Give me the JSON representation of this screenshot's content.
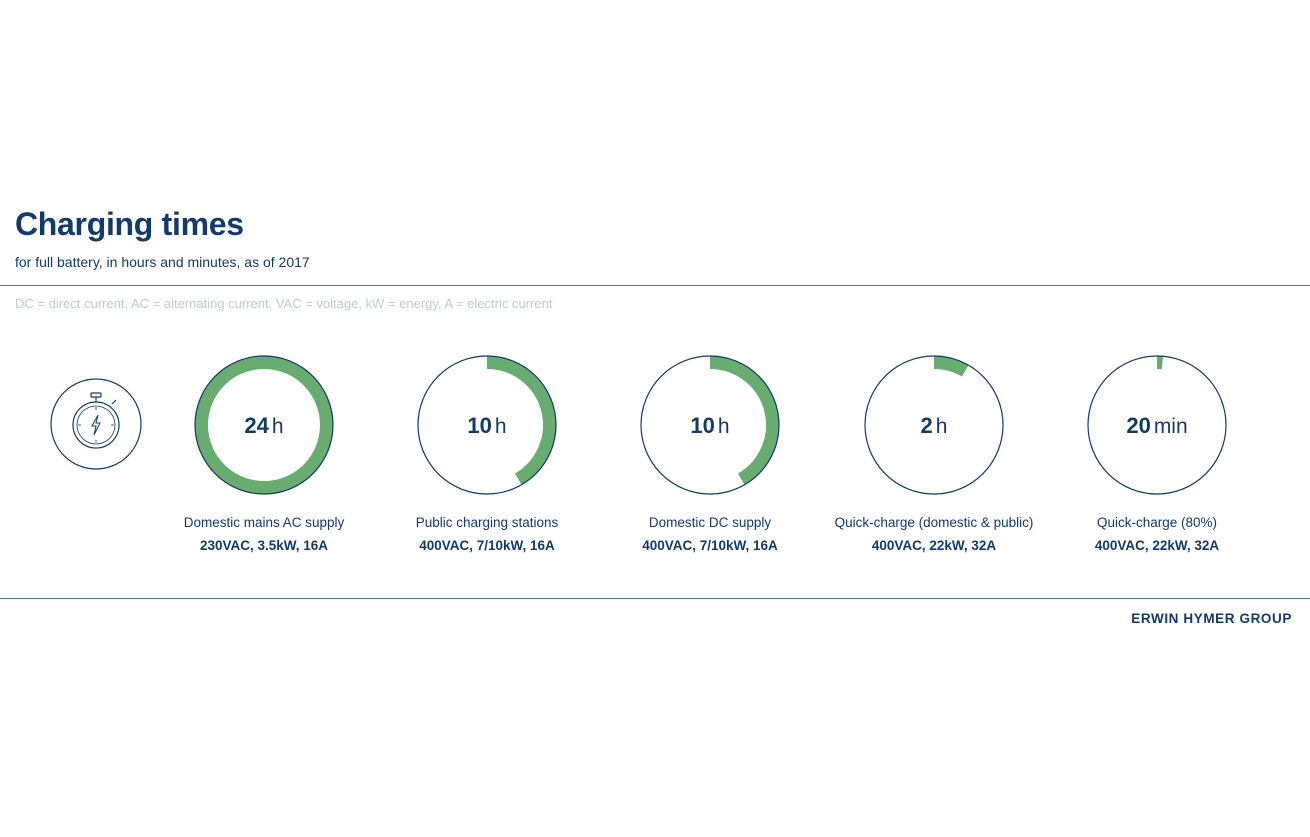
{
  "header": {
    "title": "Charging times",
    "subtitle": "for full battery, in hours and minutes, as of 2017",
    "legend_note": "DC = direct current, AC = alternating current, VAC = voltage, kW = energy, A = electric current"
  },
  "icon": {
    "name": "stopwatch-icon"
  },
  "colors": {
    "ring_fill": "#68ac6f",
    "ring_outline": "#123a6b",
    "text": "#123a6b"
  },
  "chart_data": {
    "type": "pie",
    "full_scale_hours": 24,
    "items": [
      {
        "value_number": "24",
        "value_unit": "h",
        "hours": 24,
        "name": "Domestic mains AC supply",
        "spec": "230VAC, 3.5kW, 16A"
      },
      {
        "value_number": "10",
        "value_unit": "h",
        "hours": 10,
        "name": "Public charging stations",
        "spec": "400VAC, 7/10kW, 16A"
      },
      {
        "value_number": "10",
        "value_unit": "h",
        "hours": 10,
        "name": "Domestic DC supply",
        "spec": "400VAC, 7/10kW, 16A"
      },
      {
        "value_number": "2",
        "value_unit": "h",
        "hours": 2,
        "name": "Quick-charge (domestic & public)",
        "spec": "400VAC, 22kW, 32A"
      },
      {
        "value_number": "20",
        "value_unit": "min",
        "hours": 0.3333,
        "name": "Quick-charge (80%)",
        "spec": "400VAC, 22kW, 32A"
      }
    ]
  },
  "footer": {
    "brand": "ERWIN HYMER GROUP"
  }
}
